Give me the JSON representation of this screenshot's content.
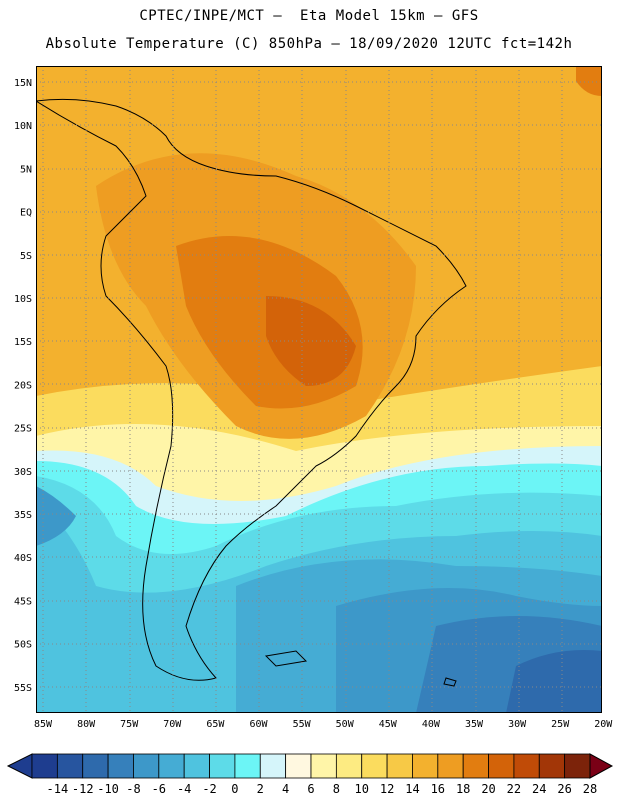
{
  "header": {
    "line1": "CPTEC/INPE/MCT –  Eta Model 15km – GFS",
    "line2": "Absolute Temperature (C) 850hPa – 18/09/2020 12UTC fct=142h"
  },
  "lat_labels": [
    "15N",
    "10N",
    "5N",
    "EQ",
    "5S",
    "10S",
    "15S",
    "20S",
    "25S",
    "30S",
    "35S",
    "40S",
    "45S",
    "50S",
    "55S"
  ],
  "lon_labels": [
    "85W",
    "80W",
    "75W",
    "70W",
    "65W",
    "60W",
    "55W",
    "50W",
    "45W",
    "40W",
    "35W",
    "30W",
    "25W",
    "20W"
  ],
  "colorbar": {
    "ticks": [
      "-14",
      "-12",
      "-10",
      "-8",
      "-6",
      "-4",
      "-2",
      "0",
      "2",
      "4",
      "6",
      "8",
      "10",
      "12",
      "14",
      "16",
      "18",
      "20",
      "22",
      "24",
      "26",
      "28"
    ],
    "colors": [
      "#1e3d8f",
      "#27559f",
      "#2e6aac",
      "#3680bb",
      "#3d98c9",
      "#45acd4",
      "#4fc3df",
      "#5ddbe8",
      "#6cf5f6",
      "#d5f5fa",
      "#fff8e0",
      "#fff5a8",
      "#fdeb82",
      "#fbdc5e",
      "#f7c946",
      "#f3b12e",
      "#ee9d22",
      "#e27d10",
      "#d36309",
      "#c04b07",
      "#a23607",
      "#7c230a"
    ]
  },
  "grid": {
    "lat": [
      15,
      10,
      5,
      0,
      -5,
      -10,
      -15,
      -20,
      -25,
      -30,
      -35,
      -40,
      -45,
      -50,
      -55
    ],
    "lon": [
      -85,
      -80,
      -75,
      -70,
      -65,
      -60,
      -55,
      -50,
      -45,
      -40,
      -35,
      -30,
      -25,
      -20
    ]
  }
}
